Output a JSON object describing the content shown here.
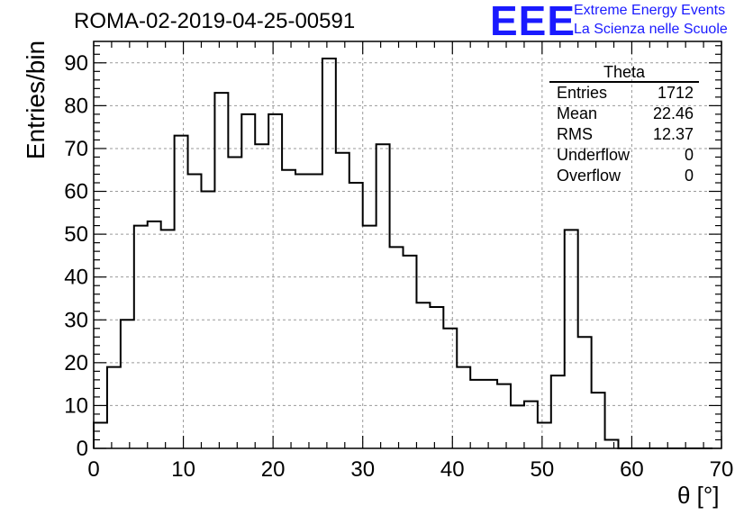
{
  "chart_data": {
    "type": "histogram",
    "title": "ROMA-02-2019-04-25-00591",
    "xlabel": "θ [°]",
    "ylabel": "Entries/bin",
    "xlim": [
      0,
      70
    ],
    "ylim": [
      0,
      95
    ],
    "bin_width": 1.5,
    "x_ticks": [
      0,
      10,
      20,
      30,
      40,
      50,
      60,
      70
    ],
    "y_ticks": [
      0,
      10,
      20,
      30,
      40,
      50,
      60,
      70,
      80,
      90
    ],
    "grid": true,
    "bin_edges": [
      0,
      1.5,
      3,
      4.5,
      6,
      7.5,
      9,
      10.5,
      12,
      13.5,
      15,
      16.5,
      18,
      19.5,
      21,
      22.5,
      24,
      25.5,
      27,
      28.5,
      30,
      31.5,
      33,
      34.5,
      36,
      37.5,
      39,
      40.5,
      42,
      43.5,
      45,
      46.5,
      48,
      49.5,
      51,
      52.5,
      54,
      55.5,
      57,
      58.5,
      60,
      61.5,
      63,
      64.5,
      66,
      67.5,
      69
    ],
    "values": [
      6,
      19,
      30,
      52,
      53,
      51,
      73,
      64,
      60,
      83,
      68,
      78,
      71,
      78,
      65,
      64,
      64,
      91,
      69,
      62,
      52,
      71,
      47,
      45,
      34,
      33,
      28,
      19,
      16,
      16,
      15,
      10,
      11,
      6,
      17,
      51,
      26,
      13,
      2,
      0,
      0,
      0,
      0,
      0,
      0,
      0
    ],
    "stats": {
      "title": "Theta",
      "rows": [
        {
          "label": "Entries",
          "value": "1712"
        },
        {
          "label": "Mean",
          "value": "22.46"
        },
        {
          "label": "RMS",
          "value": "12.37"
        },
        {
          "label": "Underflow",
          "value": "0"
        },
        {
          "label": "Overflow",
          "value": "0"
        }
      ]
    }
  },
  "logo": {
    "text": "EEE",
    "line1": "Extreme Energy Events",
    "line2": "La Scienza nelle Scuole",
    "color": "#1a1aff"
  }
}
